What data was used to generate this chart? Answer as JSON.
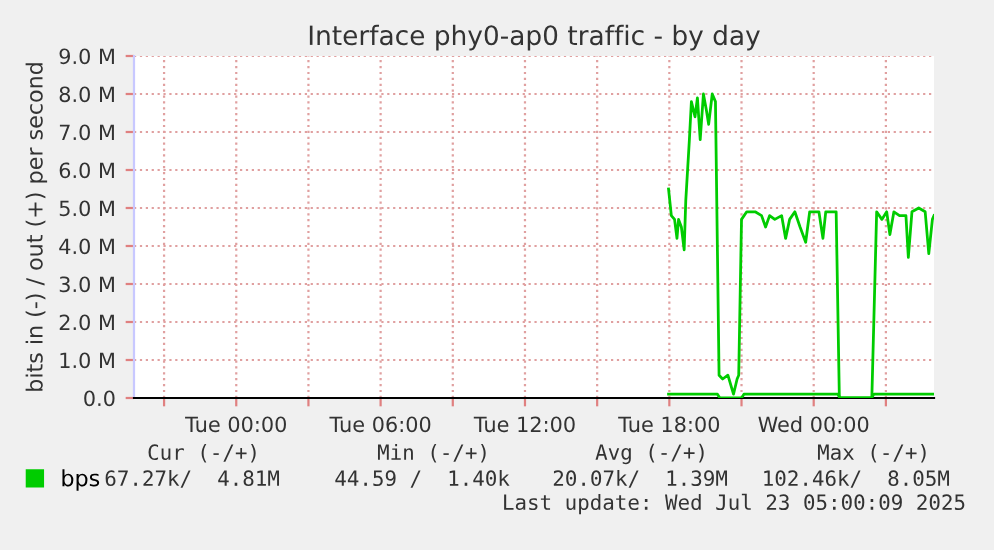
{
  "chart_data": {
    "type": "line",
    "title": "Interface phy0-ap0 traffic - by day",
    "ylabel": "bits in (-) / out (+) per second",
    "xlim": [
      "2025-07-21T19:45",
      "2025-07-23T05:00"
    ],
    "ylim": [
      0,
      9.0
    ],
    "xticks": [
      {
        "value": "2025-07-21T21:00",
        "label": null
      },
      {
        "value": "2025-07-22T00:00",
        "label": "Tue 00:00"
      },
      {
        "value": "2025-07-22T03:00",
        "label": null
      },
      {
        "value": "2025-07-22T06:00",
        "label": "Tue 06:00"
      },
      {
        "value": "2025-07-22T09:00",
        "label": null
      },
      {
        "value": "2025-07-22T12:00",
        "label": "Tue 12:00"
      },
      {
        "value": "2025-07-22T15:00",
        "label": null
      },
      {
        "value": "2025-07-22T18:00",
        "label": "Tue 18:00"
      },
      {
        "value": "2025-07-22T21:00",
        "label": null
      },
      {
        "value": "2025-07-23T00:00",
        "label": "Wed 00:00"
      },
      {
        "value": "2025-07-23T03:00",
        "label": null
      }
    ],
    "yticks": [
      {
        "value": 0,
        "label": "0.0"
      },
      {
        "value": 1,
        "label": "1.0 M"
      },
      {
        "value": 2,
        "label": "2.0 M"
      },
      {
        "value": 3,
        "label": "3.0 M"
      },
      {
        "value": 4,
        "label": "4.0 M"
      },
      {
        "value": 5,
        "label": "5.0 M"
      },
      {
        "value": 6,
        "label": "6.0 M"
      },
      {
        "value": 7,
        "label": "7.0 M"
      },
      {
        "value": 8,
        "label": "8.0 M"
      },
      {
        "value": 9,
        "label": "9.0 M"
      }
    ],
    "grid": true,
    "legend": "bottom",
    "marker": "none",
    "line_style": "solid",
    "series": [
      {
        "name": "bps",
        "color": "#00cc00",
        "x": [
          "2025-07-22T17:58",
          "2025-07-22T18:05",
          "2025-07-22T18:13",
          "2025-07-22T18:19",
          "2025-07-22T18:23",
          "2025-07-22T18:30",
          "2025-07-22T18:37",
          "2025-07-22T18:41",
          "2025-07-22T18:50",
          "2025-07-22T18:55",
          "2025-07-22T19:04",
          "2025-07-22T19:10",
          "2025-07-22T19:17",
          "2025-07-22T19:25",
          "2025-07-22T19:32",
          "2025-07-22T19:38",
          "2025-07-22T19:47",
          "2025-07-22T19:55",
          "2025-07-22T20:04",
          "2025-07-22T20:13",
          "2025-07-22T20:26",
          "2025-07-22T20:40",
          "2025-07-22T20:49",
          "2025-07-22T20:53",
          "2025-07-22T21:00",
          "2025-07-22T21:13",
          "2025-07-22T21:34",
          "2025-07-22T21:50",
          "2025-07-22T22:00",
          "2025-07-22T22:10",
          "2025-07-22T22:23",
          "2025-07-22T22:40",
          "2025-07-22T22:50",
          "2025-07-22T23:00",
          "2025-07-22T23:13",
          "2025-07-22T23:26",
          "2025-07-22T23:40",
          "2025-07-22T23:50",
          "2025-07-23T00:04",
          "2025-07-23T00:13",
          "2025-07-23T00:23",
          "2025-07-23T00:30",
          "2025-07-23T00:43",
          "2025-07-23T00:56",
          "2025-07-23T01:04",
          "2025-07-23T02:00",
          "2025-07-23T02:25",
          "2025-07-23T02:37",
          "2025-07-23T02:50",
          "2025-07-23T03:02",
          "2025-07-23T03:10",
          "2025-07-23T03:20",
          "2025-07-23T03:34",
          "2025-07-23T03:50",
          "2025-07-23T03:56",
          "2025-07-23T04:05",
          "2025-07-23T04:22",
          "2025-07-23T04:38",
          "2025-07-23T04:47",
          "2025-07-23T04:56",
          "2025-07-23T05:00"
        ],
        "values": [
          5.5,
          4.8,
          4.7,
          4.2,
          4.7,
          4.5,
          3.9,
          5.2,
          6.8,
          7.8,
          7.4,
          7.9,
          6.8,
          8.0,
          7.6,
          7.2,
          8.0,
          7.8,
          0.6,
          0.5,
          0.6,
          0.1,
          0.5,
          0.6,
          4.7,
          4.9,
          4.9,
          4.8,
          4.5,
          4.8,
          4.7,
          4.8,
          4.2,
          4.7,
          4.9,
          4.5,
          4.1,
          4.9,
          4.9,
          4.9,
          4.2,
          4.9,
          4.9,
          4.9,
          0.0,
          0.0,
          0.0,
          4.9,
          4.7,
          4.9,
          4.3,
          4.9,
          4.8,
          4.8,
          3.7,
          4.9,
          5.0,
          4.9,
          3.8,
          4.7,
          4.8
        ]
      },
      {
        "color": "#00cc00",
        "x": [
          "2025-07-22T17:58",
          "2025-07-22T20:00",
          "2025-07-22T20:06",
          "2025-07-22T21:00",
          "2025-07-22T21:06",
          "2025-07-23T01:00",
          "2025-07-23T01:06",
          "2025-07-23T02:24",
          "2025-07-23T02:30",
          "2025-07-23T05:00"
        ],
        "values": [
          0.1,
          0.1,
          0.0,
          0.0,
          0.1,
          0.1,
          0.0,
          0.0,
          0.1,
          0.1
        ]
      }
    ],
    "annotations": [
      "Cur (-/+)",
      "Min (-/+)",
      "Avg (-/+)",
      "Max (-/+)",
      "67.27k/  4.81M",
      "44.59 /  1.40k",
      "20.07k/  1.39M",
      "102.46k/  8.05M",
      "Last update: Wed Jul 23 05:00:09 2025"
    ]
  }
}
